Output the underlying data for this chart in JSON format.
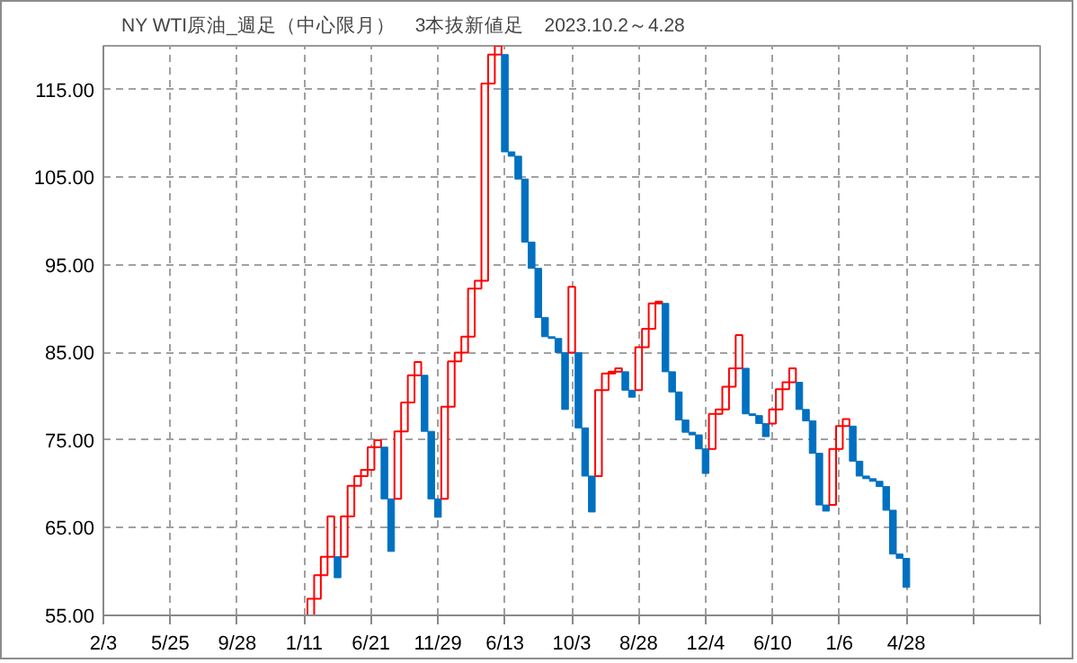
{
  "chart_data": {
    "type": "bar",
    "title": "NY WTI原油_週足（中心限月）　3本抜新値足　2023.10.2～4.28",
    "categories": [
      "2/3",
      null,
      null,
      null,
      null,
      null,
      null,
      null,
      null,
      null,
      "5/25",
      null,
      null,
      null,
      null,
      null,
      null,
      null,
      null,
      null,
      "9/28",
      null,
      null,
      null,
      null,
      null,
      null,
      null,
      null,
      null,
      "1/11",
      null,
      null,
      null,
      null,
      null,
      null,
      null,
      null,
      null,
      "6/21",
      null,
      null,
      null,
      null,
      null,
      null,
      null,
      null,
      null,
      "11/29",
      null,
      null,
      null,
      null,
      null,
      null,
      null,
      null,
      null,
      "6/13",
      null,
      null,
      null,
      null,
      null,
      null,
      null,
      null,
      null,
      "10/3",
      null,
      null,
      null,
      null,
      null,
      null,
      null,
      null,
      null,
      "8/28",
      null,
      null,
      null,
      null,
      null,
      null,
      null,
      null,
      null,
      "12/4",
      null,
      null,
      null,
      null,
      null,
      null,
      null,
      null,
      null,
      "6/10",
      null,
      null,
      null,
      null,
      null,
      null,
      null,
      null,
      null,
      "1/6",
      null,
      null,
      null,
      null,
      null,
      null,
      null,
      null,
      null,
      "4/28",
      null,
      null,
      null,
      null,
      null,
      null,
      null,
      null,
      null,
      null,
      null,
      null,
      null,
      null,
      null,
      null,
      null,
      null,
      null,
      null
    ],
    "base": [
      null,
      null,
      null,
      null,
      null,
      null,
      null,
      null,
      null,
      null,
      null,
      null,
      null,
      null,
      null,
      null,
      null,
      null,
      null,
      null,
      null,
      null,
      null,
      null,
      null,
      null,
      null,
      null,
      null,
      null,
      null,
      55,
      56.9,
      59.6,
      61.7,
      61.7,
      61.7,
      66.3,
      69.8,
      70.9,
      71.6,
      74.2,
      74.2,
      68.3,
      68.3,
      76.0,
      79.3,
      82.4,
      82.4,
      76.0,
      68.3,
      68.3,
      78.8,
      84.0,
      85.0,
      86.8,
      92.3,
      93.2,
      115.7,
      119.0,
      119.0,
      107.9,
      107.4,
      104.8,
      97.6,
      94.6,
      89.0,
      86.8,
      86.6,
      85.0,
      85.0,
      85.0,
      76.4,
      70.9,
      70.9,
      80.7,
      82.6,
      82.8,
      82.8,
      80.7,
      80.7,
      85.6,
      87.7,
      90.6,
      90.6,
      82.8,
      80.5,
      77.3,
      75.9,
      75.6,
      74.0,
      74.0,
      78.0,
      78.5,
      81.1,
      83.2,
      83.2,
      78.0,
      77.8,
      76.9,
      76.9,
      78.5,
      80.8,
      81.6,
      81.6,
      78.5,
      77.2,
      73.5,
      67.6,
      67.6,
      74.0,
      76.6,
      76.6,
      72.6,
      70.9,
      70.6,
      70.3,
      69.7,
      67.0,
      62.0,
      61.5,
      null,
      null,
      null,
      null,
      null,
      null,
      null,
      null,
      null,
      null,
      null,
      null,
      null,
      null,
      null,
      null,
      null,
      null,
      null,
      null
    ],
    "values": [
      null,
      null,
      null,
      null,
      null,
      null,
      null,
      null,
      null,
      null,
      null,
      null,
      null,
      null,
      null,
      null,
      null,
      null,
      null,
      null,
      null,
      null,
      null,
      null,
      null,
      null,
      null,
      null,
      null,
      null,
      null,
      1.9,
      2.7,
      2.1,
      4.6,
      -2.4,
      4.6,
      3.5,
      1.1,
      0.7,
      2.6,
      0.8,
      -5.9,
      -6.0,
      7.7,
      3.3,
      3.1,
      1.5,
      -6.4,
      -7.7,
      -2.1,
      10.5,
      5.2,
      1.0,
      1.8,
      5.5,
      0.9,
      22.5,
      3.3,
      1.0,
      -11.1,
      -0.5,
      -2.6,
      -7.2,
      -3.0,
      -5.6,
      -2.2,
      -0.2,
      -1.6,
      -6.5,
      7.5,
      -8.6,
      -5.5,
      -4.1,
      9.8,
      1.9,
      0.2,
      0.4,
      -2.1,
      -0.8,
      4.9,
      2.1,
      2.9,
      0.2,
      -7.8,
      -2.3,
      -3.2,
      -1.4,
      -0.3,
      -1.6,
      -2.8,
      4.0,
      0.5,
      2.6,
      2.1,
      3.8,
      -5.2,
      -0.2,
      -0.9,
      -1.5,
      1.6,
      2.3,
      0.8,
      1.6,
      -3.1,
      -1.3,
      -3.7,
      -5.9,
      -0.7,
      6.4,
      2.6,
      0.8,
      -4.0,
      -1.7,
      -0.3,
      -0.3,
      -0.6,
      -2.7,
      -5.0,
      -0.5,
      -3.3,
      null,
      null,
      null,
      null,
      null,
      null,
      null,
      null,
      null,
      null,
      null,
      null,
      null,
      null,
      null,
      null,
      null,
      null,
      null,
      null
    ],
    "colors": [
      null,
      null,
      null,
      null,
      null,
      null,
      null,
      null,
      null,
      null,
      null,
      null,
      null,
      null,
      null,
      null,
      null,
      null,
      null,
      null,
      null,
      null,
      null,
      null,
      null,
      null,
      null,
      null,
      null,
      null,
      null,
      "#ff0000",
      "#ff0000",
      "#ff0000",
      "#ff0000",
      "#0070c0",
      "#ff0000",
      "#ff0000",
      "#ff0000",
      "#ff0000",
      "#ff0000",
      "#ff0000",
      "#0070c0",
      "#0070c0",
      "#ff0000",
      "#ff0000",
      "#ff0000",
      "#ff0000",
      "#0070c0",
      "#0070c0",
      "#0070c0",
      "#ff0000",
      "#ff0000",
      "#ff0000",
      "#ff0000",
      "#ff0000",
      "#ff0000",
      "#ff0000",
      "#ff0000",
      "#ff0000",
      "#0070c0",
      "#0070c0",
      "#0070c0",
      "#0070c0",
      "#0070c0",
      "#0070c0",
      "#0070c0",
      "#0070c0",
      "#0070c0",
      "#0070c0",
      "#ff0000",
      "#0070c0",
      "#0070c0",
      "#0070c0",
      "#ff0000",
      "#ff0000",
      "#ff0000",
      "#ff0000",
      "#0070c0",
      "#0070c0",
      "#ff0000",
      "#ff0000",
      "#ff0000",
      "#ff0000",
      "#0070c0",
      "#0070c0",
      "#0070c0",
      "#0070c0",
      "#0070c0",
      "#0070c0",
      "#0070c0",
      "#ff0000",
      "#ff0000",
      "#ff0000",
      "#ff0000",
      "#ff0000",
      "#0070c0",
      "#0070c0",
      "#0070c0",
      "#0070c0",
      "#ff0000",
      "#ff0000",
      "#ff0000",
      "#ff0000",
      "#0070c0",
      "#0070c0",
      "#0070c0",
      "#0070c0",
      "#0070c0",
      "#ff0000",
      "#ff0000",
      "#ff0000",
      "#0070c0",
      "#0070c0",
      "#0070c0",
      "#0070c0",
      "#0070c0",
      "#0070c0",
      "#0070c0",
      "#0070c0",
      "#0070c0",
      null,
      null,
      null,
      null,
      null,
      null,
      null,
      null,
      null,
      null,
      null,
      null,
      null,
      null,
      null,
      null,
      null,
      null,
      null,
      null
    ],
    "ylim": [
      55,
      120
    ],
    "yticks": [
      {
        "value": 55,
        "label": "55.00"
      },
      {
        "value": 65,
        "label": "65.00"
      },
      {
        "value": 75,
        "label": "75.00"
      },
      {
        "value": 85,
        "label": "85.00"
      },
      {
        "value": 95,
        "label": "95.00"
      },
      {
        "value": 105,
        "label": "105.00"
      },
      {
        "value": 115,
        "label": "115.00"
      }
    ],
    "grid": true
  }
}
